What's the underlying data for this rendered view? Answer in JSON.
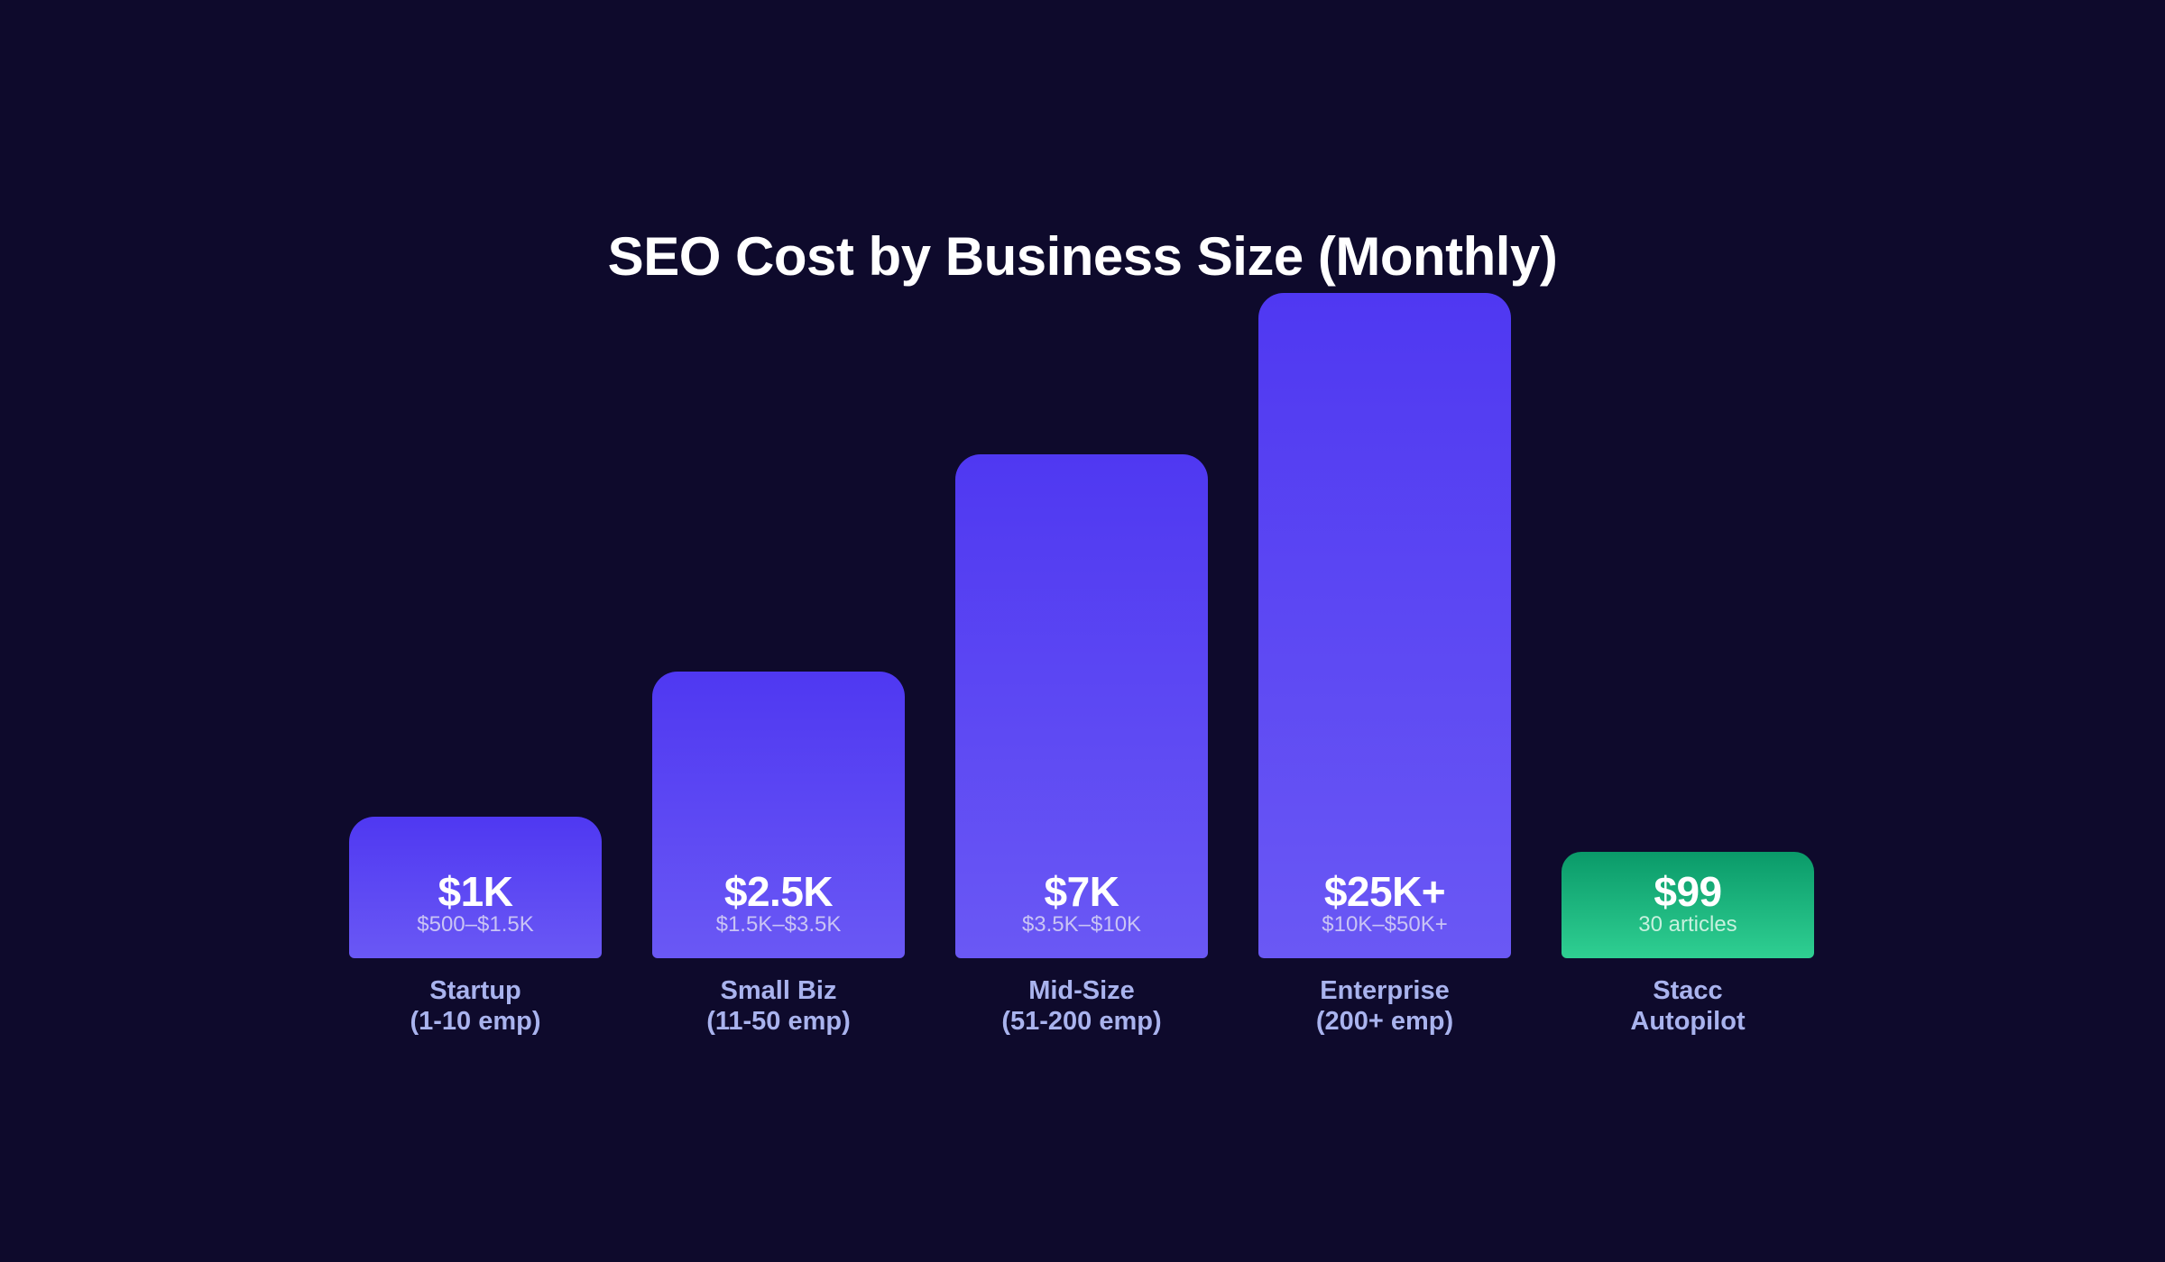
{
  "chart_data": {
    "type": "bar",
    "title": "SEO Cost by Business Size (Monthly)",
    "xlabel": "",
    "ylabel": "",
    "ylim": [
      0,
      25000
    ],
    "grid": false,
    "categories": [
      {
        "line1": "Startup",
        "line2": "(1-10 emp)"
      },
      {
        "line1": "Small Biz",
        "line2": "(11-50 emp)"
      },
      {
        "line1": "Mid-Size",
        "line2": "(51-200 emp)"
      },
      {
        "line1": "Enterprise",
        "line2": "(200+ emp)"
      },
      {
        "line1": "Stacc",
        "line2": "Autopilot"
      }
    ],
    "values": [
      1000,
      2500,
      7000,
      25000,
      99
    ],
    "value_labels": [
      "$1K",
      "$2.5K",
      "$7K",
      "$25K+",
      "$99"
    ],
    "range_labels": [
      "$500–$1.5K",
      "$1.5K–$3.5K",
      "$3.5K–$10K",
      "$10K–$50K+",
      "30 articles"
    ],
    "colors": {
      "background": "#0e0a2c",
      "bar_top": "#4f38f2",
      "bar_bottom": "#6a58f4",
      "highlight_top": "#0a9a69",
      "highlight_bottom": "#2fcf92",
      "range_text": "#c9c4f5",
      "highlight_range_text": "#c7f1de",
      "category_text": "#a9b3ee"
    },
    "highlight_index": 4
  }
}
